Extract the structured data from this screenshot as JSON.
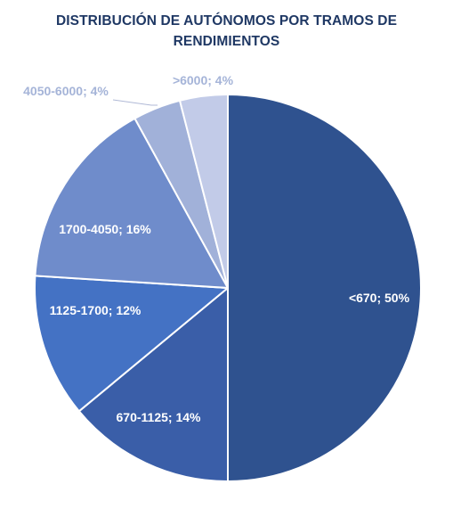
{
  "chart_data": {
    "type": "pie",
    "title_lines": [
      "DISTRIBUCIÓN DE AUTÓNOMOS POR TRAMOS DE",
      "RENDIMIENTOS"
    ],
    "slices": [
      {
        "label": "<670",
        "value": 50,
        "text": "<670; 50%",
        "color": "#2f528f"
      },
      {
        "label": "670-1125",
        "value": 14,
        "text": "670-1125; 14%",
        "color": "#3a5ea8"
      },
      {
        "label": "1125-1700",
        "value": 12,
        "text": "1125-1700; 12%",
        "color": "#4472c4"
      },
      {
        "label": "1700-4050",
        "value": 16,
        "text": "1700-4050; 16%",
        "color": "#6f8ccb"
      },
      {
        "label": "4050-6000",
        "value": 4,
        "text": "4050-6000; 4%",
        "color": "#a1b1d9"
      },
      {
        "label": ">6000",
        "value": 4,
        "text": ">6000; 4%",
        "color": "#c2cbe8"
      }
    ],
    "start_angle_deg": 0,
    "direction": "clockwise",
    "legend": "none",
    "label_colors": {
      "inside": "#ffffff",
      "outside": "#a5b4d8"
    }
  }
}
